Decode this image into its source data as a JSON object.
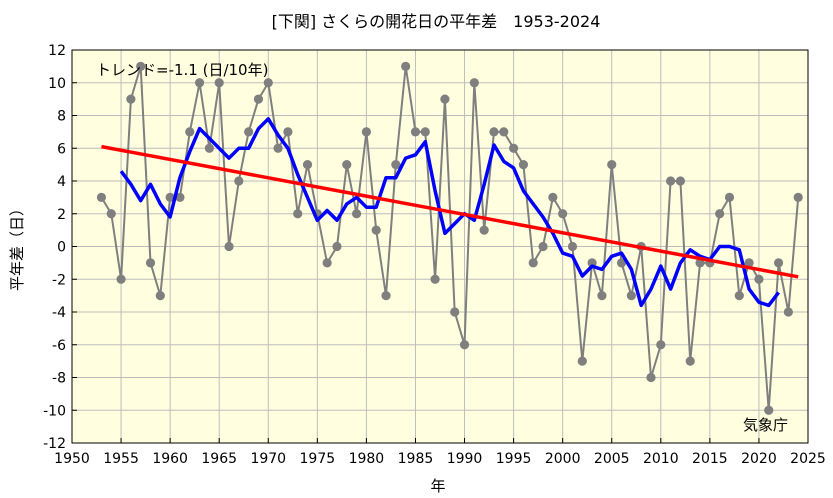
{
  "chart_data": {
    "type": "line",
    "title": "[下関] さくらの開花日の平年差　1953-2024",
    "xlabel": "年",
    "ylabel": "平年差（日）",
    "trend_label": "トレンド=-1.1 (日/10年)",
    "credit": "気象庁",
    "xlim": [
      1950,
      2025
    ],
    "ylim": [
      -12,
      12
    ],
    "x_ticks": [
      "1950",
      "1955",
      "1960",
      "1965",
      "1970",
      "1975",
      "1980",
      "1985",
      "1990",
      "1995",
      "2000",
      "2005",
      "2010",
      "2015",
      "2020",
      "2025"
    ],
    "y_ticks": [
      "-12",
      "-10",
      "-8",
      "-6",
      "-4",
      "-2",
      "0",
      "2",
      "4",
      "6",
      "8",
      "10",
      "12"
    ],
    "grid": true,
    "colors": {
      "background": "#ffffe0",
      "annual": "#7f7f7f",
      "moving_average": "#0000ff",
      "trend": "#ff0000"
    },
    "series": [
      {
        "values": [
          [
            1953,
            3
          ],
          [
            1954,
            2
          ],
          [
            1955,
            -2
          ],
          [
            1956,
            9
          ],
          [
            1957,
            11
          ],
          [
            1958,
            -1
          ],
          [
            1959,
            -3
          ],
          [
            1960,
            3
          ],
          [
            1961,
            3
          ],
          [
            1962,
            7
          ],
          [
            1963,
            10
          ],
          [
            1964,
            6
          ],
          [
            1965,
            10
          ],
          [
            1966,
            0
          ],
          [
            1967,
            4
          ],
          [
            1968,
            7
          ],
          [
            1969,
            9
          ],
          [
            1970,
            10
          ],
          [
            1971,
            6
          ],
          [
            1972,
            7
          ],
          [
            1973,
            2
          ],
          [
            1974,
            5
          ],
          [
            1975,
            2
          ],
          [
            1976,
            -1
          ],
          [
            1977,
            0
          ],
          [
            1978,
            5
          ],
          [
            1979,
            2
          ],
          [
            1980,
            7
          ],
          [
            1981,
            1
          ],
          [
            1982,
            -3
          ],
          [
            1983,
            5
          ],
          [
            1984,
            11
          ],
          [
            1985,
            7
          ],
          [
            1986,
            7
          ],
          [
            1987,
            -2
          ],
          [
            1988,
            9
          ],
          [
            1989,
            -4
          ],
          [
            1990,
            -6
          ],
          [
            1991,
            10
          ],
          [
            1992,
            1
          ],
          [
            1993,
            7
          ],
          [
            1994,
            7
          ],
          [
            1995,
            6
          ],
          [
            1996,
            5
          ],
          [
            1997,
            -1
          ],
          [
            1998,
            0
          ],
          [
            1999,
            3
          ],
          [
            2000,
            2
          ],
          [
            2001,
            0
          ],
          [
            2002,
            -7
          ],
          [
            2003,
            -1
          ],
          [
            2004,
            -3
          ],
          [
            2005,
            5
          ],
          [
            2006,
            -1
          ],
          [
            2007,
            -3
          ],
          [
            2008,
            0
          ],
          [
            2009,
            -8
          ],
          [
            2010,
            -6
          ],
          [
            2011,
            4
          ],
          [
            2012,
            4
          ],
          [
            2013,
            -7
          ],
          [
            2014,
            -1
          ],
          [
            2015,
            -1
          ],
          [
            2016,
            2
          ],
          [
            2017,
            3
          ],
          [
            2018,
            -3
          ],
          [
            2019,
            -1
          ],
          [
            2020,
            -2
          ],
          [
            2021,
            -10
          ],
          [
            2022,
            -1
          ],
          [
            2023,
            -4
          ],
          [
            2024,
            3
          ]
        ]
      },
      {
        "values": [
          [
            1955,
            4.6
          ],
          [
            1956,
            3.8
          ],
          [
            1957,
            2.8
          ],
          [
            1958,
            3.8
          ],
          [
            1959,
            2.6
          ],
          [
            1960,
            1.8
          ],
          [
            1961,
            4.2
          ],
          [
            1962,
            5.8
          ],
          [
            1963,
            7.2
          ],
          [
            1964,
            6.6
          ],
          [
            1965,
            6.0
          ],
          [
            1966,
            5.4
          ],
          [
            1967,
            6.0
          ],
          [
            1968,
            6.0
          ],
          [
            1969,
            7.2
          ],
          [
            1970,
            7.8
          ],
          [
            1971,
            6.8
          ],
          [
            1972,
            6.0
          ],
          [
            1973,
            4.4
          ],
          [
            1974,
            3.0
          ],
          [
            1975,
            1.6
          ],
          [
            1976,
            2.2
          ],
          [
            1977,
            1.6
          ],
          [
            1978,
            2.6
          ],
          [
            1979,
            3.0
          ],
          [
            1980,
            2.4
          ],
          [
            1981,
            2.4
          ],
          [
            1982,
            4.2
          ],
          [
            1983,
            4.2
          ],
          [
            1984,
            5.4
          ],
          [
            1985,
            5.6
          ],
          [
            1986,
            6.4
          ],
          [
            1987,
            3.4
          ],
          [
            1988,
            0.8
          ],
          [
            1989,
            1.4
          ],
          [
            1990,
            2.0
          ],
          [
            1991,
            1.6
          ],
          [
            1992,
            3.8
          ],
          [
            1993,
            6.2
          ],
          [
            1994,
            5.2
          ],
          [
            1995,
            4.8
          ],
          [
            1996,
            3.4
          ],
          [
            1997,
            2.6
          ],
          [
            1998,
            1.8
          ],
          [
            1999,
            0.8
          ],
          [
            2000,
            -0.4
          ],
          [
            2001,
            -0.6
          ],
          [
            2002,
            -1.8
          ],
          [
            2003,
            -1.2
          ],
          [
            2004,
            -1.4
          ],
          [
            2005,
            -0.6
          ],
          [
            2006,
            -0.4
          ],
          [
            2007,
            -1.4
          ],
          [
            2008,
            -3.6
          ],
          [
            2009,
            -2.6
          ],
          [
            2010,
            -1.2
          ],
          [
            2011,
            -2.6
          ],
          [
            2012,
            -1.0
          ],
          [
            2013,
            -0.2
          ],
          [
            2014,
            -0.6
          ],
          [
            2015,
            -0.8
          ],
          [
            2016,
            0.0
          ],
          [
            2017,
            0.0
          ],
          [
            2018,
            -0.2
          ],
          [
            2019,
            -2.6
          ],
          [
            2020,
            -3.4
          ],
          [
            2021,
            -3.6
          ],
          [
            2022,
            -2.8
          ]
        ]
      },
      {
        "values": [
          [
            1953,
            6.1
          ],
          [
            2024,
            -1.85
          ]
        ]
      }
    ]
  }
}
